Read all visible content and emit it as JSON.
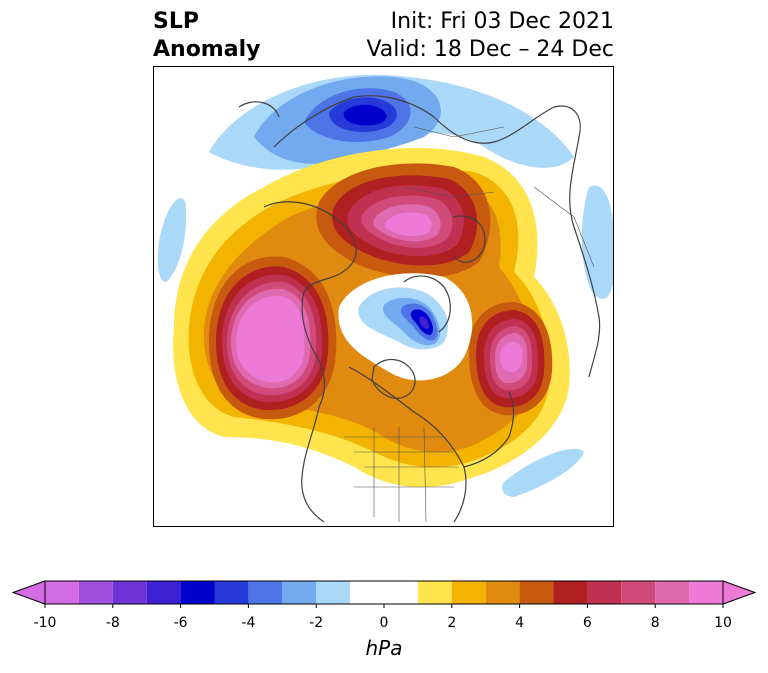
{
  "title": {
    "left_line1": "SLP",
    "left_line2": "Anomaly",
    "right_line1": "Init: Fri 03 Dec 2021",
    "right_line2": "Valid: 18 Dec – 24 Dec"
  },
  "colorbar": {
    "unit": "hPa",
    "ticks": [
      "-10",
      "-8",
      "-6",
      "-4",
      "-2",
      "0",
      "2",
      "4",
      "6",
      "8",
      "10"
    ],
    "tick_values": [
      -10,
      -8,
      -6,
      -4,
      -2,
      0,
      2,
      4,
      6,
      8,
      10
    ],
    "min": -10,
    "max": 10,
    "bin_edges": [
      -10,
      -9,
      -8,
      -7,
      -6,
      -5,
      -4,
      -3,
      -2,
      -1,
      1,
      2,
      3,
      4,
      5,
      6,
      7,
      8,
      9,
      10
    ],
    "colors": [
      "#d46ce6",
      "#a050e0",
      "#7033d8",
      "#3d1fd4",
      "#0000cc",
      "#2639d9",
      "#4d73e6",
      "#73aaef",
      "#aad8f8",
      "#ffffff",
      "#ffe44d",
      "#f2b400",
      "#e08a10",
      "#c85a10",
      "#b02020",
      "#c03050",
      "#d04a7a",
      "#e06ab0",
      "#ee7ad8"
    ],
    "extend_min_color": "#d46ce6",
    "extend_max_color": "#ee7ad8"
  },
  "map": {
    "projection": "north-polar-stereographic",
    "variable": "sea level pressure anomaly",
    "features": [
      {
        "name": "pacific-high",
        "sign": "positive",
        "peak": 10
      },
      {
        "name": "arctic-siberia-high",
        "sign": "positive",
        "peak": 10
      },
      {
        "name": "atlantic-high",
        "sign": "positive",
        "peak": 10
      },
      {
        "name": "arctic-low",
        "sign": "negative",
        "peak": -7
      },
      {
        "name": "north-atlantic-low",
        "sign": "negative",
        "peak": -6
      }
    ]
  }
}
